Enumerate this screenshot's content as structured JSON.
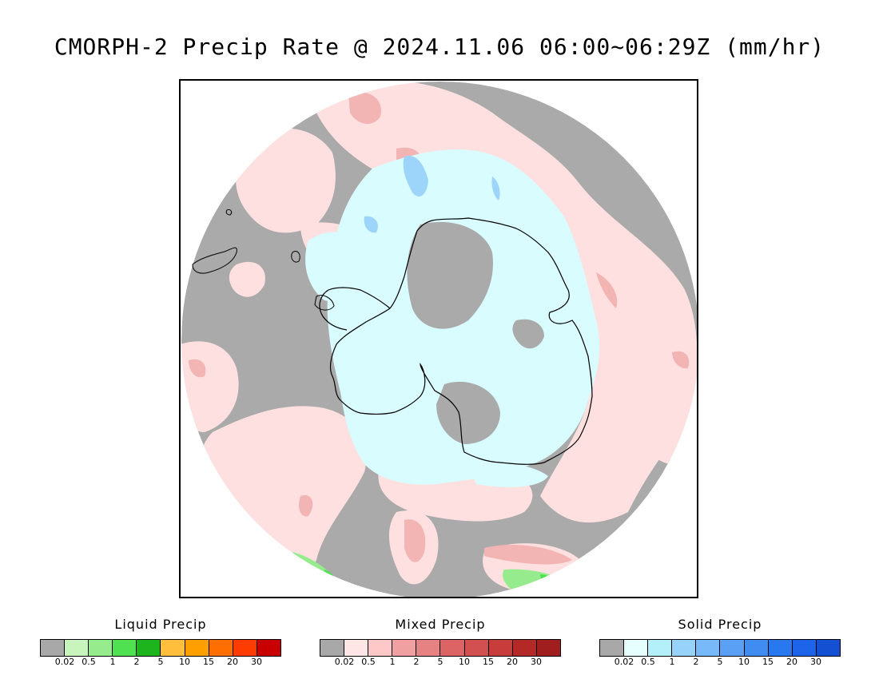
{
  "title": "CMORPH-2 Precip Rate @ 2024.11.06 06:00~06:29Z (mm/hr)",
  "map": {
    "projection": "south polar stereographic",
    "background_no_precip_color": "#aaaaaa",
    "coastline_color": "#000000"
  },
  "legends": [
    {
      "id": "liquid",
      "title": "Liquid Precip",
      "colors": [
        "#a8a8a8",
        "#c8f5be",
        "#96eb8c",
        "#50e150",
        "#1eb41e",
        "#ffbe3c",
        "#ffa000",
        "#ff6e00",
        "#ff3c00",
        "#c80000"
      ],
      "ticks": [
        "0.02",
        "0.5",
        "1",
        "2",
        "5",
        "10",
        "15",
        "20",
        "30"
      ]
    },
    {
      "id": "mixed",
      "title": "Mixed Precip",
      "colors": [
        "#a8a8a8",
        "#ffe6e6",
        "#ffc8c8",
        "#f0a0a0",
        "#e68282",
        "#dc6464",
        "#d25050",
        "#c83c3c",
        "#b42828",
        "#a01e1e"
      ],
      "ticks": [
        "0.02",
        "0.5",
        "1",
        "2",
        "5",
        "10",
        "15",
        "20",
        "30"
      ]
    },
    {
      "id": "solid",
      "title": "Solid Precip",
      "colors": [
        "#a8a8a8",
        "#e6ffff",
        "#b4f0fa",
        "#96d2fa",
        "#78b9fa",
        "#5aa0f5",
        "#418cf0",
        "#2878f0",
        "#1e64eb",
        "#1450d2"
      ],
      "ticks": [
        "0.02",
        "0.5",
        "1",
        "2",
        "5",
        "10",
        "15",
        "20",
        "30"
      ]
    }
  ]
}
